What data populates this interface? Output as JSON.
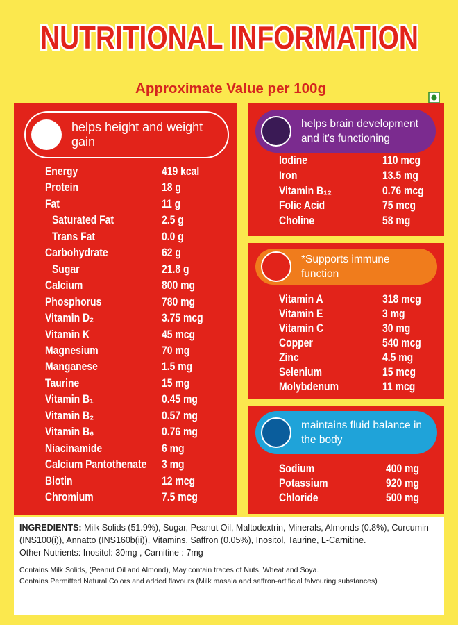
{
  "header": {
    "title": "NUTRITIONAL INFORMATION",
    "subtitle": "Approximate Value per 100g"
  },
  "panels": [
    {
      "heading": "helps height and weight gain",
      "rows": [
        [
          "Energy",
          "419 kcal"
        ],
        [
          "Protein",
          "18 g"
        ],
        [
          "Fat",
          "11 g"
        ],
        [
          "Saturated Fat",
          "2.5 g"
        ],
        [
          "Trans Fat",
          "0.0 g"
        ],
        [
          "Carbohydrate",
          "62 g"
        ],
        [
          "Sugar",
          "21.8 g"
        ],
        [
          "Calcium",
          "800 mg"
        ],
        [
          "Phosphorus",
          "780 mg"
        ],
        [
          "Vitamin D₂",
          "3.75 mcg"
        ],
        [
          "Vitamin K",
          "45 mcg"
        ],
        [
          "Magnesium",
          "70 mg"
        ],
        [
          "Manganese",
          "1.5 mg"
        ],
        [
          "Taurine",
          "15 mg"
        ],
        [
          "Vitamin B₁",
          "0.45 mg"
        ],
        [
          "Vitamin B₂",
          "0.57 mg"
        ],
        [
          "Vitamin B₆",
          "0.76 mg"
        ],
        [
          "Niacinamide",
          "6 mg"
        ],
        [
          "Calcium Pantothenate",
          "3 mg"
        ],
        [
          "Biotin",
          "12 mcg"
        ],
        [
          "Chromium",
          "7.5 mcg"
        ]
      ]
    },
    {
      "heading": "helps brain development and it's functioning",
      "rows": [
        [
          "Iodine",
          "110 mcg"
        ],
        [
          "Iron",
          "13.5 mg"
        ],
        [
          "Vitamin B₁₂",
          "0.76 mcg"
        ],
        [
          "Folic Acid",
          "75 mcg"
        ],
        [
          "Choline",
          "58 mg"
        ]
      ]
    },
    {
      "heading": "*Supports immune function",
      "rows": [
        [
          "Vitamin A",
          "318 mcg"
        ],
        [
          "Vitamin E",
          "3 mg"
        ],
        [
          "Vitamin C",
          "30 mg"
        ],
        [
          "Copper",
          "540 mcg"
        ],
        [
          "Zinc",
          "4.5 mg"
        ],
        [
          "Selenium",
          "15 mcg"
        ],
        [
          "Molybdenum",
          "11 mcg"
        ]
      ]
    },
    {
      "heading": "maintains fluid balance in the body",
      "rows": [
        [
          "Sodium",
          "400 mg"
        ],
        [
          "Potassium",
          "920 mg"
        ],
        [
          "Chloride",
          "500 mg"
        ]
      ]
    }
  ],
  "ingredients": {
    "label": "INGREDIENTS:",
    "text": "Milk Solids (51.9%), Sugar, Peanut Oil, Maltodextrin, Minerals, Almonds (0.8%), Curcumin (INS100(i)), Annatto (INS160b(ii)), Vitamins, Saffron (0.05%), Inositol, Taurine, L-Carnitine.",
    "other": "Other Nutrients: Inositol: 30mg , Carnitine : 7mg",
    "notes": [
      "Contains Milk Solids, (Peanut Oil and Almond), May contain traces of Nuts, Wheat and Soya.",
      "Contains Permitted Natural Colors and added flavours (Milk masala and saffron-artificial falvouring substances)"
    ]
  }
}
